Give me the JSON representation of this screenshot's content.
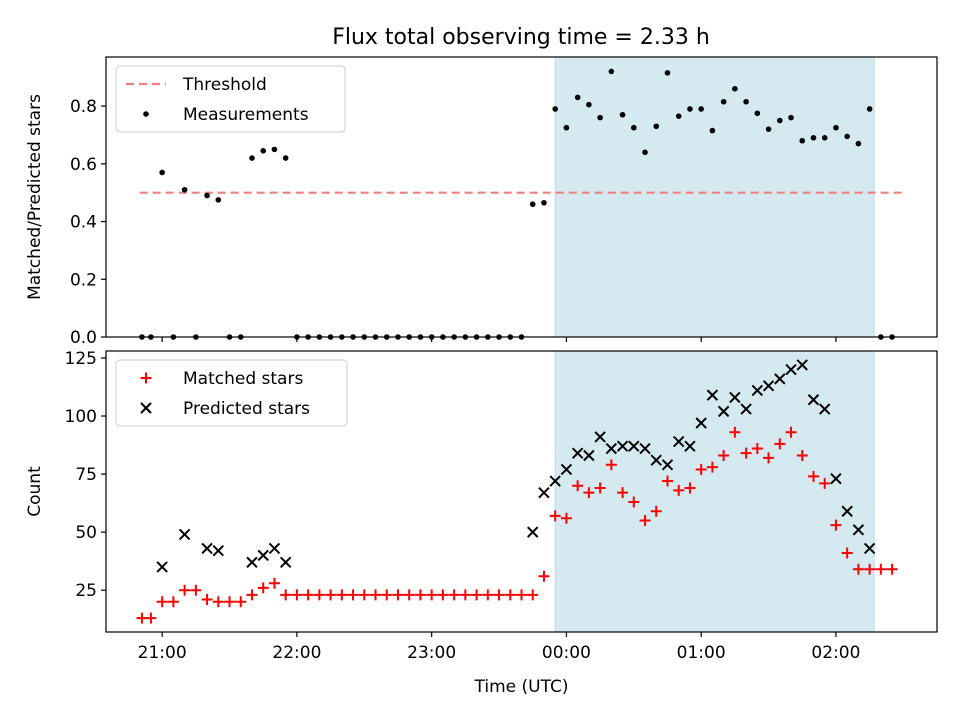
{
  "chart_data": [
    {
      "type": "scatter",
      "title": "Flux total observing time = 2.33 h",
      "xlabel": "",
      "ylabel": "Matched/Predicted stars",
      "x_range": [
        "20:35",
        "02:45"
      ],
      "ylim": [
        0,
        0.97
      ],
      "yticks": [
        0.0,
        0.2,
        0.4,
        0.6,
        0.8
      ],
      "ytick_labels": [
        "0.0",
        "0.2",
        "0.4",
        "0.6",
        "0.8"
      ],
      "shaded_interval": [
        "23:55",
        "02:17"
      ],
      "shade_color": "#d4eaf0",
      "legend_position": "upper left",
      "threshold": {
        "name": "Threshold",
        "value": 0.5,
        "x_range": [
          "20:50",
          "02:30"
        ],
        "color": "#f08080",
        "style": "dashed"
      },
      "series": [
        {
          "name": "Measurements",
          "color": "#000000",
          "marker": "dot",
          "points": [
            [
              "20:51",
              0
            ],
            [
              "20:55",
              0
            ],
            [
              "21:00",
              0.57
            ],
            [
              "21:05",
              0
            ],
            [
              "21:10",
              0.51
            ],
            [
              "21:15",
              0
            ],
            [
              "21:20",
              0.49
            ],
            [
              "21:25",
              0.475
            ],
            [
              "21:30",
              0
            ],
            [
              "21:35",
              0
            ],
            [
              "21:40",
              0.62
            ],
            [
              "21:45",
              0.645
            ],
            [
              "21:50",
              0.65
            ],
            [
              "21:55",
              0.62
            ],
            [
              "22:00",
              0
            ],
            [
              "22:05",
              0
            ],
            [
              "22:10",
              0
            ],
            [
              "22:15",
              0
            ],
            [
              "22:20",
              0
            ],
            [
              "22:25",
              0
            ],
            [
              "22:30",
              0
            ],
            [
              "22:35",
              0
            ],
            [
              "22:40",
              0
            ],
            [
              "22:45",
              0
            ],
            [
              "22:50",
              0
            ],
            [
              "22:55",
              0
            ],
            [
              "23:00",
              0
            ],
            [
              "23:05",
              0
            ],
            [
              "23:10",
              0
            ],
            [
              "23:15",
              0
            ],
            [
              "23:20",
              0
            ],
            [
              "23:25",
              0
            ],
            [
              "23:30",
              0
            ],
            [
              "23:35",
              0
            ],
            [
              "23:40",
              0
            ],
            [
              "23:45",
              0.46
            ],
            [
              "23:50",
              0.465
            ],
            [
              "23:55",
              0.79
            ],
            [
              "00:00",
              0.725
            ],
            [
              "00:05",
              0.83
            ],
            [
              "00:10",
              0.805
            ],
            [
              "00:15",
              0.76
            ],
            [
              "00:20",
              0.92
            ],
            [
              "00:25",
              0.77
            ],
            [
              "00:30",
              0.725
            ],
            [
              "00:35",
              0.64
            ],
            [
              "00:40",
              0.73
            ],
            [
              "00:45",
              0.915
            ],
            [
              "00:50",
              0.765
            ],
            [
              "00:55",
              0.79
            ],
            [
              "01:00",
              0.79
            ],
            [
              "01:05",
              0.715
            ],
            [
              "01:10",
              0.815
            ],
            [
              "01:15",
              0.86
            ],
            [
              "01:20",
              0.815
            ],
            [
              "01:25",
              0.775
            ],
            [
              "01:30",
              0.72
            ],
            [
              "01:35",
              0.75
            ],
            [
              "01:40",
              0.76
            ],
            [
              "01:45",
              0.68
            ],
            [
              "01:50",
              0.69
            ],
            [
              "01:55",
              0.69
            ],
            [
              "02:00",
              0.725
            ],
            [
              "02:05",
              0.695
            ],
            [
              "02:10",
              0.67
            ],
            [
              "02:15",
              0.79
            ],
            [
              "02:20",
              0
            ],
            [
              "02:25",
              0
            ]
          ]
        }
      ]
    },
    {
      "type": "scatter",
      "title": "",
      "xlabel": "Time (UTC)",
      "ylabel": "Count",
      "x_range": [
        "20:35",
        "02:45"
      ],
      "ylim": [
        7,
        128
      ],
      "yticks": [
        25,
        50,
        75,
        100,
        125
      ],
      "ytick_labels": [
        "25",
        "50",
        "75",
        "100",
        "125"
      ],
      "xticks": [
        "21:00",
        "22:00",
        "23:00",
        "00:00",
        "01:00",
        "02:00"
      ],
      "xtick_labels": [
        "21:00",
        "22:00",
        "23:00",
        "00:00",
        "01:00",
        "02:00"
      ],
      "shaded_interval": [
        "23:55",
        "02:17"
      ],
      "shade_color": "#d4eaf0",
      "legend_position": "upper left",
      "series": [
        {
          "name": "Matched stars",
          "color": "#ff0000",
          "marker": "plus",
          "points": [
            [
              "20:51",
              13
            ],
            [
              "20:55",
              13
            ],
            [
              "21:00",
              20
            ],
            [
              "21:05",
              20
            ],
            [
              "21:10",
              25
            ],
            [
              "21:15",
              25
            ],
            [
              "21:20",
              21
            ],
            [
              "21:25",
              20
            ],
            [
              "21:30",
              20
            ],
            [
              "21:35",
              20
            ],
            [
              "21:40",
              23
            ],
            [
              "21:45",
              26
            ],
            [
              "21:50",
              28
            ],
            [
              "21:55",
              23
            ],
            [
              "22:00",
              23
            ],
            [
              "22:05",
              23
            ],
            [
              "22:10",
              23
            ],
            [
              "22:15",
              23
            ],
            [
              "22:20",
              23
            ],
            [
              "22:25",
              23
            ],
            [
              "22:30",
              23
            ],
            [
              "22:35",
              23
            ],
            [
              "22:40",
              23
            ],
            [
              "22:45",
              23
            ],
            [
              "22:50",
              23
            ],
            [
              "22:55",
              23
            ],
            [
              "23:00",
              23
            ],
            [
              "23:05",
              23
            ],
            [
              "23:10",
              23
            ],
            [
              "23:15",
              23
            ],
            [
              "23:20",
              23
            ],
            [
              "23:25",
              23
            ],
            [
              "23:30",
              23
            ],
            [
              "23:35",
              23
            ],
            [
              "23:40",
              23
            ],
            [
              "23:45",
              23
            ],
            [
              "23:50",
              31
            ],
            [
              "23:55",
              57
            ],
            [
              "00:00",
              56
            ],
            [
              "00:05",
              70
            ],
            [
              "00:10",
              67
            ],
            [
              "00:15",
              69
            ],
            [
              "00:20",
              79
            ],
            [
              "00:25",
              67
            ],
            [
              "00:30",
              63
            ],
            [
              "00:35",
              55
            ],
            [
              "00:40",
              59
            ],
            [
              "00:45",
              72
            ],
            [
              "00:50",
              68
            ],
            [
              "00:55",
              69
            ],
            [
              "01:00",
              77
            ],
            [
              "01:05",
              78
            ],
            [
              "01:10",
              83
            ],
            [
              "01:15",
              93
            ],
            [
              "01:20",
              84
            ],
            [
              "01:25",
              86
            ],
            [
              "01:30",
              82
            ],
            [
              "01:35",
              88
            ],
            [
              "01:40",
              93
            ],
            [
              "01:45",
              83
            ],
            [
              "01:50",
              74
            ],
            [
              "01:55",
              71
            ],
            [
              "02:00",
              53
            ],
            [
              "02:05",
              41
            ],
            [
              "02:10",
              34
            ],
            [
              "02:15",
              34
            ],
            [
              "02:20",
              34
            ],
            [
              "02:25",
              34
            ]
          ]
        },
        {
          "name": "Predicted stars",
          "color": "#000000",
          "marker": "x",
          "points": [
            [
              "21:00",
              35
            ],
            [
              "21:10",
              49
            ],
            [
              "21:20",
              43
            ],
            [
              "21:25",
              42
            ],
            [
              "21:40",
              37
            ],
            [
              "21:45",
              40
            ],
            [
              "21:50",
              43
            ],
            [
              "21:55",
              37
            ],
            [
              "23:45",
              50
            ],
            [
              "23:50",
              67
            ],
            [
              "23:55",
              72
            ],
            [
              "00:00",
              77
            ],
            [
              "00:05",
              84
            ],
            [
              "00:10",
              83
            ],
            [
              "00:15",
              91
            ],
            [
              "00:20",
              86
            ],
            [
              "00:25",
              87
            ],
            [
              "00:30",
              87
            ],
            [
              "00:35",
              86
            ],
            [
              "00:40",
              81
            ],
            [
              "00:45",
              79
            ],
            [
              "00:50",
              89
            ],
            [
              "00:55",
              87
            ],
            [
              "01:00",
              97
            ],
            [
              "01:05",
              109
            ],
            [
              "01:10",
              102
            ],
            [
              "01:15",
              108
            ],
            [
              "01:20",
              103
            ],
            [
              "01:25",
              111
            ],
            [
              "01:30",
              113
            ],
            [
              "01:35",
              116
            ],
            [
              "01:40",
              120
            ],
            [
              "01:45",
              122
            ],
            [
              "01:50",
              107
            ],
            [
              "01:55",
              103
            ],
            [
              "02:00",
              73
            ],
            [
              "02:05",
              59
            ],
            [
              "02:10",
              51
            ],
            [
              "02:15",
              43
            ]
          ]
        }
      ]
    }
  ]
}
